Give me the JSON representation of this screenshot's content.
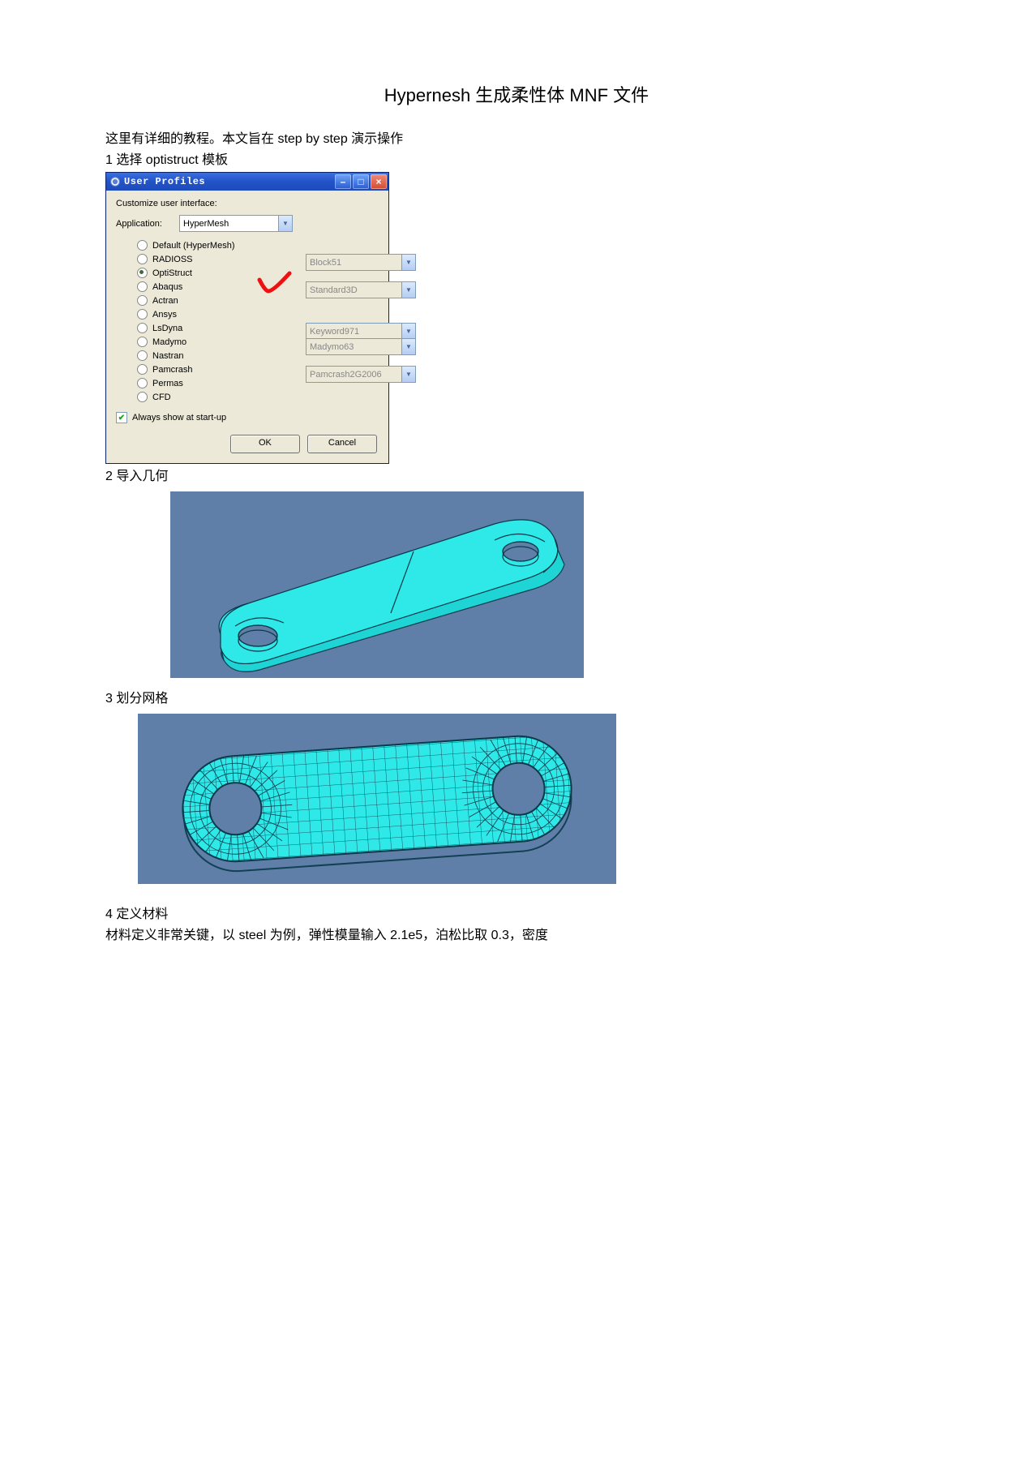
{
  "title": "Hypernesh 生成柔性体  MNF 文件",
  "intro": "这里有详细的教程。本文旨在   step by step 演示操作",
  "step1": "1 选择 optistruct 模板",
  "step2": "2 导入几何",
  "step3": "3 划分网格",
  "step4": "4 定义材料",
  "step4_body": "材料定义非常关键，以 steel 为例，弹性模量输入 2.1e5，泊松比取 0.3，密度",
  "dialog": {
    "title": "User Profiles",
    "customize_label": "Customize user interface:",
    "application_label": "Application:",
    "application_value": "HyperMesh",
    "radios": [
      {
        "label": "Default (HyperMesh)",
        "selected": false
      },
      {
        "label": "RADIOSS",
        "selected": false
      },
      {
        "label": "OptiStruct",
        "selected": true
      },
      {
        "label": "Abaqus",
        "selected": false
      },
      {
        "label": "Actran",
        "selected": false
      },
      {
        "label": "Ansys",
        "selected": false
      },
      {
        "label": "LsDyna",
        "selected": false
      },
      {
        "label": "Madymo",
        "selected": false
      },
      {
        "label": "Nastran",
        "selected": false
      },
      {
        "label": "Pamcrash",
        "selected": false
      },
      {
        "label": "Permas",
        "selected": false
      },
      {
        "label": "CFD",
        "selected": false
      }
    ],
    "side": {
      "radioss": "Block51",
      "abaqus": "Standard3D",
      "lsdyna": "Keyword971",
      "madymo": "Madymo63",
      "pamcrash": "Pamcrash2G2006"
    },
    "always_show": "Always show at start-up",
    "ok": "OK",
    "cancel": "Cancel"
  },
  "viewport_colors": {
    "bg": "#5f7fa8",
    "part": "#2fe8e8",
    "edge": "#0a3a4a"
  }
}
